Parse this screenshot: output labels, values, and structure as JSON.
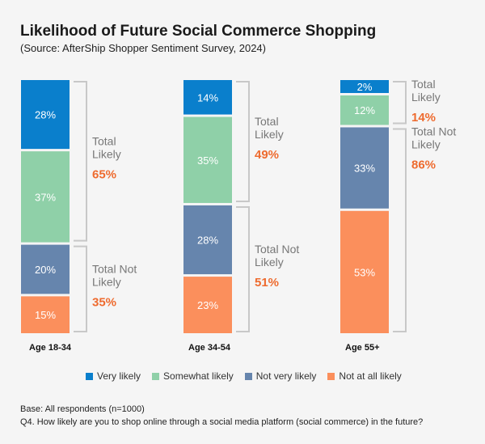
{
  "chart_data": {
    "type": "bar",
    "stacked": true,
    "percent": true,
    "title": "Likelihood of Future Social Commerce Shopping",
    "subtitle": "(Source: AfterShip Shopper Sentiment Survey, 2024)",
    "categories": [
      "Age 18-34",
      "Age 34-54",
      "Age 55+"
    ],
    "series": [
      {
        "name": "Very likely",
        "color": "#0a7fcc",
        "values": [
          28,
          14,
          2
        ]
      },
      {
        "name": "Somewhat likely",
        "color": "#8fd0a8",
        "values": [
          37,
          35,
          12
        ]
      },
      {
        "name": "Not very likely",
        "color": "#6685ad",
        "values": [
          20,
          28,
          33
        ]
      },
      {
        "name": "Not at all likely",
        "color": "#fb8f5c",
        "values": [
          15,
          23,
          53
        ]
      }
    ],
    "annotations": {
      "likely_label": "Total Likely",
      "not_likely_label": "Total Not Likely",
      "total_likely": [
        "65%",
        "49%",
        "14%"
      ],
      "total_not_likely": [
        "35%",
        "51%",
        "86%"
      ],
      "total_color": "#ee6b2f"
    },
    "legend_position": "bottom",
    "grid": false
  },
  "footer": {
    "base": "Base: All respondents (n=1000)",
    "question": "Q4. How likely are you to shop online through a social media platform (social commerce) in the future?"
  }
}
